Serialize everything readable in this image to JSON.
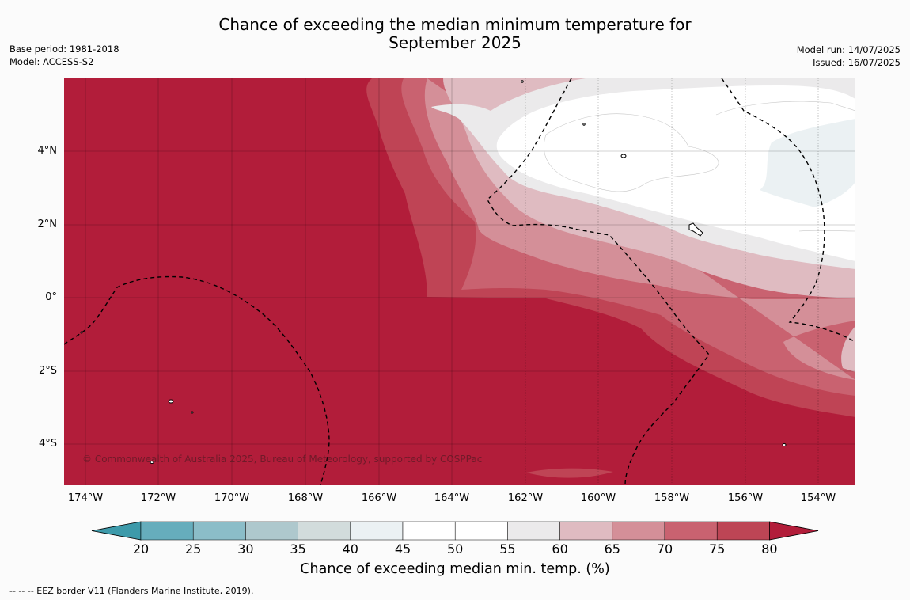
{
  "title_line1": "Chance of exceeding the median minimum temperature for",
  "title_line2": "September 2025",
  "base_period": "Base period: 1981-2018",
  "model": "Model: ACCESS-S2",
  "model_run": "Model run: 14/07/2025",
  "issued": "Issued: 16/07/2025",
  "copyright": "© Commonwealth of Australia 2025, Bureau of Meteorology, supported by COSPPac",
  "footnote": "--  --  -- EEZ border V11 (Flanders Marine Institute, 2019).",
  "lat_labels": [
    "4°N",
    "2°N",
    "0°",
    "2°S",
    "4°S"
  ],
  "lon_labels": [
    "174°W",
    "172°W",
    "170°W",
    "168°W",
    "166°W",
    "164°W",
    "162°W",
    "160°W",
    "158°W",
    "156°W",
    "154°W"
  ],
  "colorbar": {
    "title": "Chance of exceeding median min. temp. (%)",
    "ticks": [
      "20",
      "25",
      "30",
      "35",
      "40",
      "45",
      "50",
      "55",
      "60",
      "65",
      "70",
      "75",
      "80"
    ],
    "colors": [
      "#66adbc",
      "#8bbdc8",
      "#aec8cd",
      "#d2dcdc",
      "#ebf1f3",
      "#ffffff",
      "#ffffff",
      "#ebeaeb",
      "#dfbbc1",
      "#d48f98",
      "#c96270",
      "#bd4555"
    ],
    "under_color": "#3d9aaa",
    "over_color": "#b21d3a"
  },
  "map_colors": {
    "c80": "#b21d3a",
    "c75": "#bf4455",
    "c70": "#c96270",
    "c65": "#d48f98",
    "c60": "#dfbbc1",
    "c55": "#ebeaeb",
    "c50": "#ffffff",
    "c40": "#ebf1f3"
  }
}
